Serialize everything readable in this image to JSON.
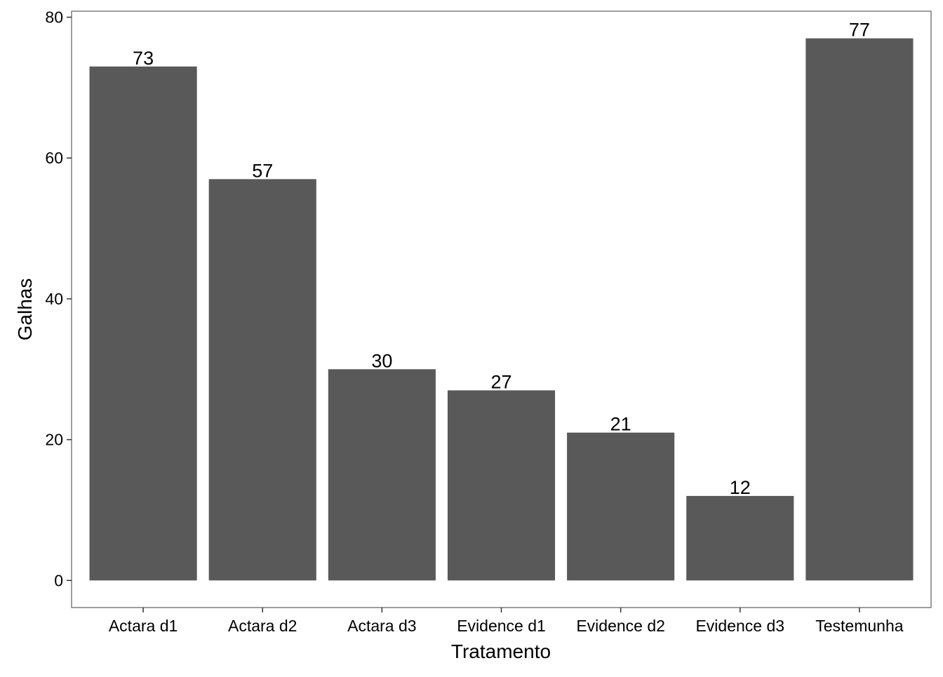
{
  "chart_data": {
    "type": "bar",
    "title": "",
    "xlabel": "Tratamento",
    "ylabel": "Galhas",
    "categories": [
      "Actara d1",
      "Actara d2",
      "Actara d3",
      "Evidence d1",
      "Evidence d2",
      "Evidence d3",
      "Testemunha"
    ],
    "values": [
      73,
      57,
      30,
      27,
      21,
      12,
      77
    ],
    "data_labels": [
      "73",
      "57",
      "30",
      "27",
      "21",
      "12",
      "77"
    ],
    "ylim": [
      -3.85,
      80.85
    ],
    "yticks": [
      0,
      20,
      40,
      60,
      80
    ],
    "ytick_labels": [
      "0",
      "20",
      "40",
      "60",
      "80"
    ],
    "grid": false,
    "legend": "none",
    "colors": {
      "bar": "#595959",
      "panel_border": "#7f7f7f",
      "axis": "#333333",
      "text": "#000000",
      "background": "#ffffff"
    }
  }
}
